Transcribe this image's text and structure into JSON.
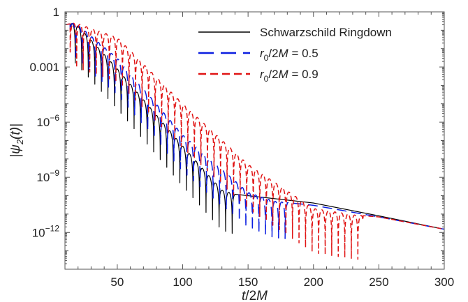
{
  "chart_data": {
    "type": "line",
    "yscale": "log",
    "xlim": [
      10,
      300
    ],
    "ylim": [
      1e-14,
      1
    ],
    "xlabel": "t/2M",
    "ylabel": "|ψ2(t)|",
    "grid": false,
    "legend_position": "top-right",
    "x_ticks": [
      {
        "value": 50,
        "label": "50"
      },
      {
        "value": 100,
        "label": "100"
      },
      {
        "value": 150,
        "label": "150"
      },
      {
        "value": 200,
        "label": "200"
      },
      {
        "value": 250,
        "label": "250"
      },
      {
        "value": 300,
        "label": "300"
      }
    ],
    "y_ticks": [
      {
        "value": 1,
        "label": "1"
      },
      {
        "value": 0.001,
        "label": "0.001"
      },
      {
        "value": 1e-06,
        "label": "10",
        "exp": "−6"
      },
      {
        "value": 1e-09,
        "label": "10",
        "exp": "−9"
      },
      {
        "value": 1e-12,
        "label": "10",
        "exp": "−12"
      }
    ],
    "series": [
      {
        "name": "Schwarzschild Ringdown",
        "legend_label": {
          "base": "Schwarzschild Ringdown"
        },
        "color": "#000000",
        "dash": "",
        "envelope": [
          [
            10,
            0.2
          ],
          [
            18,
            0.25
          ],
          [
            50,
            0.0008
          ],
          [
            100,
            5e-08
          ],
          [
            130,
            2e-10
          ],
          [
            140,
            1.2e-10
          ],
          [
            200,
            4e-11
          ],
          [
            250,
            8e-12
          ],
          [
            300,
            1.5e-12
          ]
        ],
        "oscillation": {
          "start": 14,
          "end": 140,
          "period": 5.0,
          "phase": 2.3
        },
        "tail_start": 140
      },
      {
        "name": "r0/2M = 0.5",
        "legend_label": {
          "base": "r",
          "sub": "0",
          "rest": "/2M = 0.5"
        },
        "color": "#0b1ee0",
        "dash": "14 7",
        "envelope": [
          [
            10,
            0.2
          ],
          [
            18,
            0.25
          ],
          [
            50,
            0.003
          ],
          [
            100,
            2e-07
          ],
          [
            150,
            1.5e-10
          ],
          [
            170,
            5e-11
          ],
          [
            200,
            3e-11
          ],
          [
            250,
            7e-12
          ],
          [
            300,
            1.5e-12
          ]
        ],
        "oscillation": {
          "start": 14,
          "end": 180,
          "period": 5.0,
          "phase": 2.0
        },
        "tail_start": 180
      },
      {
        "name": "r0/2M = 0.9",
        "legend_label": {
          "base": "r",
          "sub": "0",
          "rest": "/2M = 0.9"
        },
        "color": "#e01414",
        "dash": "7 4",
        "envelope": [
          [
            10,
            0.2
          ],
          [
            18,
            0.25
          ],
          [
            50,
            0.04
          ],
          [
            100,
            1e-05
          ],
          [
            150,
            5e-09
          ],
          [
            200,
            2e-11
          ],
          [
            220,
            1.2e-11
          ],
          [
            230,
            9e-12
          ],
          [
            250,
            7e-12
          ],
          [
            300,
            1.5e-12
          ]
        ],
        "oscillation": {
          "start": 14,
          "end": 238,
          "period": 5.0,
          "phase": 1.6
        },
        "tail_start": 238
      }
    ]
  }
}
